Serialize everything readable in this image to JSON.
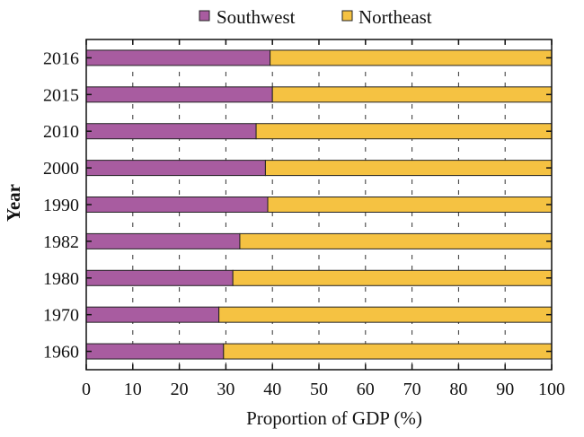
{
  "chart_data": {
    "type": "bar",
    "stacked": true,
    "orientation": "horizontal",
    "xlabel": "Proportion of GDP (%)",
    "ylabel": "Year",
    "xlim": [
      0,
      100
    ],
    "xticks": [
      0,
      10,
      20,
      30,
      40,
      50,
      60,
      70,
      80,
      90,
      100
    ],
    "grid": "dashed vertical",
    "legend_position": "top",
    "categories": [
      "2016",
      "2015",
      "2010",
      "2000",
      "1990",
      "1982",
      "1980",
      "1970",
      "1960"
    ],
    "series": [
      {
        "name": "Southwest",
        "color": "#a85ca0",
        "values": [
          39.5,
          40,
          36.5,
          38.5,
          39,
          33,
          31.5,
          28.5,
          29.5
        ]
      },
      {
        "name": "Northeast",
        "color": "#f5c242",
        "values": [
          60.5,
          60,
          63.5,
          61.5,
          61,
          67,
          68.5,
          71.5,
          70.5
        ]
      }
    ]
  }
}
